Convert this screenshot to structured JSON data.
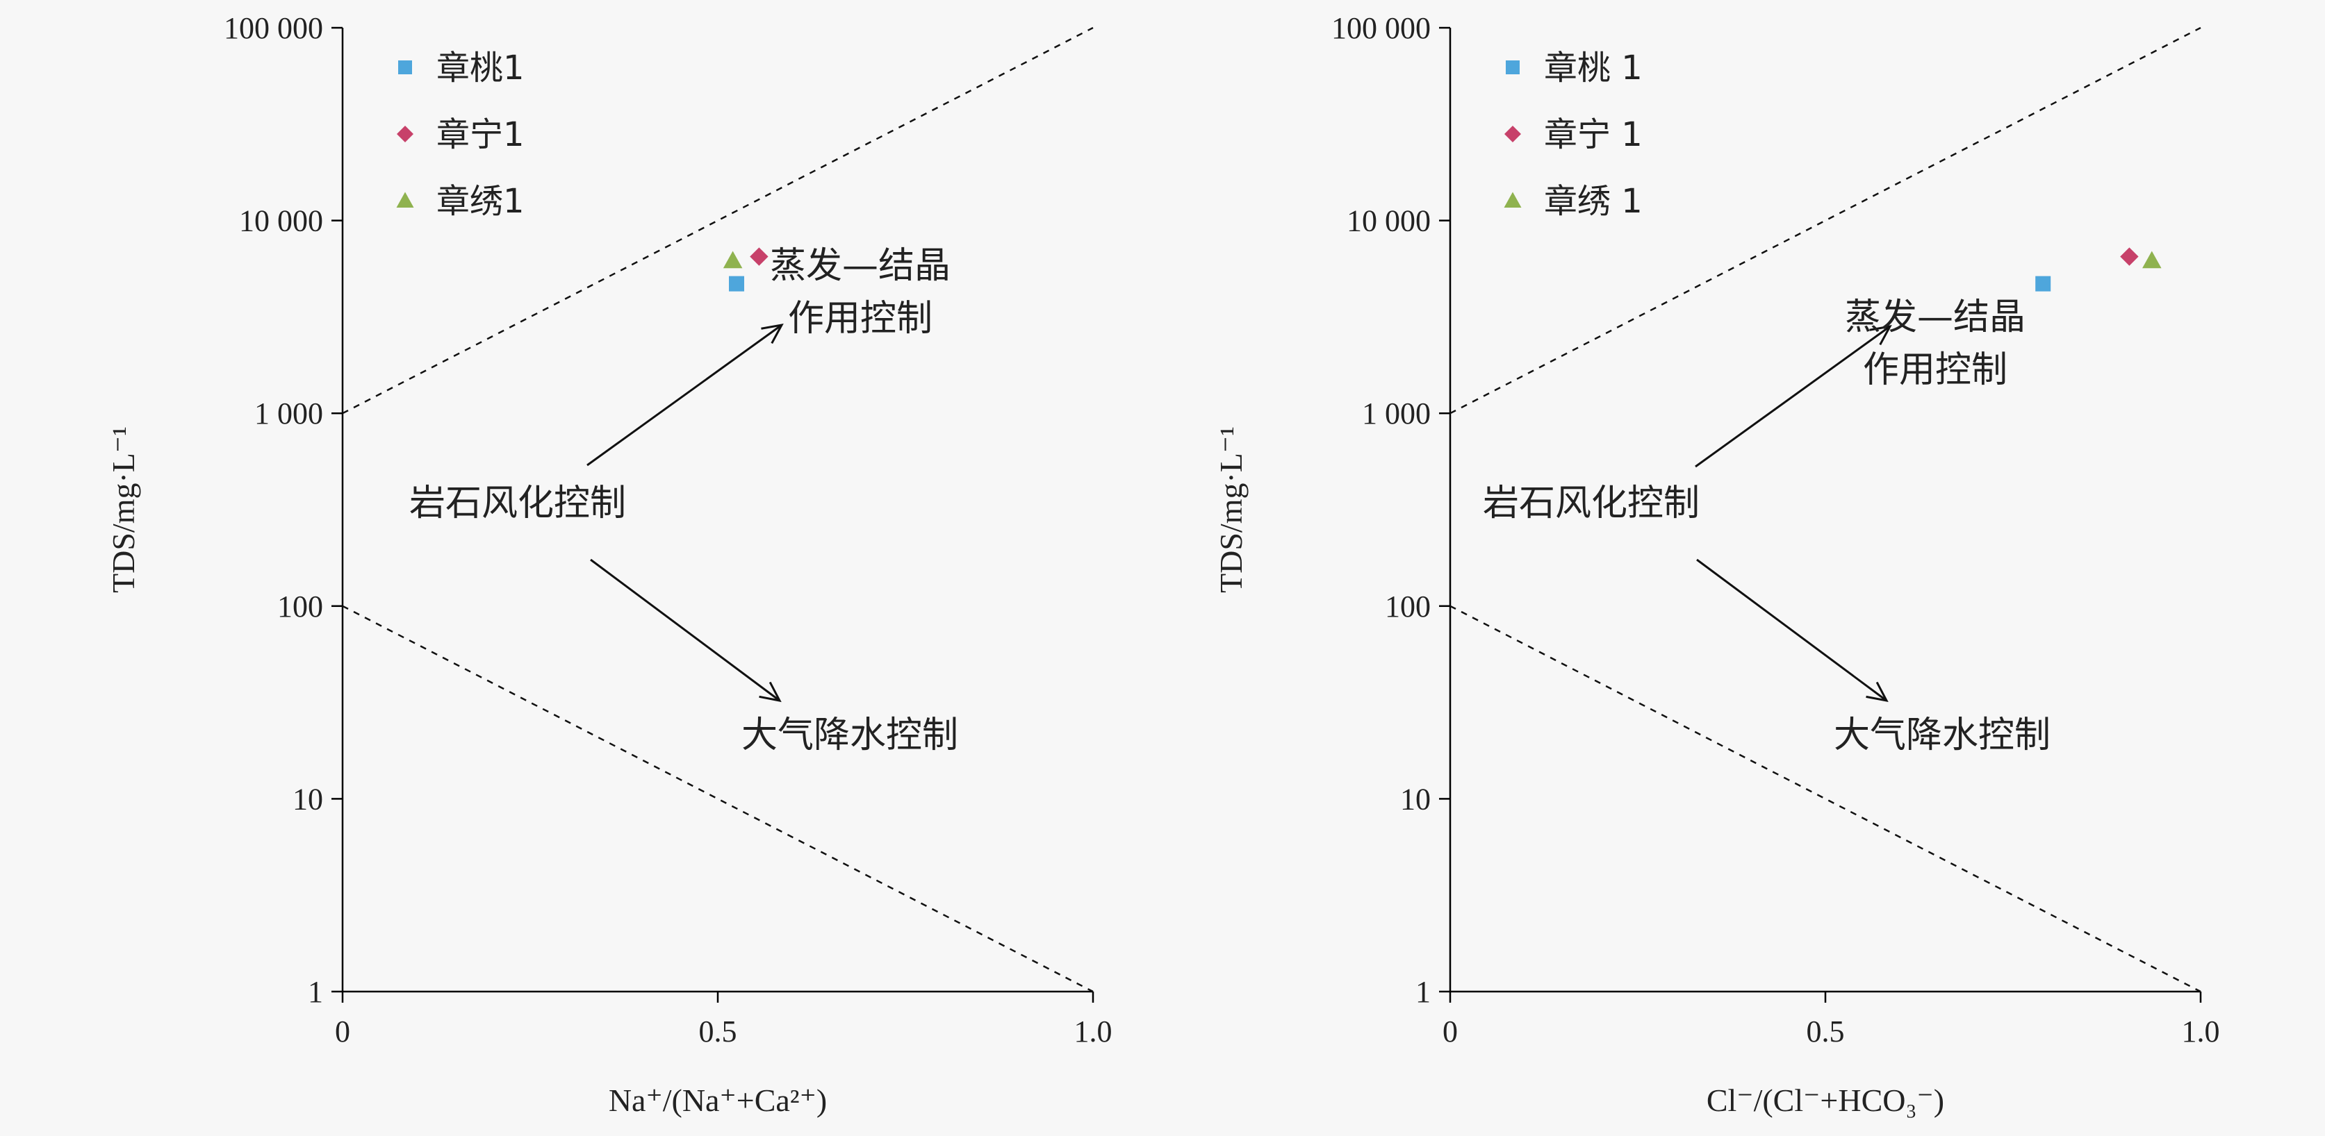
{
  "colors": {
    "square": "#4ea6dc",
    "diamond": "#c7416a",
    "triangle": "#8fb24f",
    "axis": "#000000"
  },
  "charts": [
    {
      "chart_data": {
        "type": "scatter",
        "y_scale": "log",
        "xlim": [
          0,
          1.0
        ],
        "ylim": [
          1,
          100000
        ],
        "xlabel": "Na⁺/(Na⁺+Ca²⁺)",
        "ylabel": "TDS/mg·L⁻¹",
        "x_ticks": [
          "0",
          "0.5",
          "1.0"
        ],
        "y_ticks": [
          "1",
          "10",
          "100",
          "1 000",
          "10 000",
          "100 000"
        ],
        "series": [
          {
            "name": "章桃1",
            "marker": "square",
            "x": 0.525,
            "y": 4700
          },
          {
            "name": "章宁1",
            "marker": "diamond",
            "x": 0.555,
            "y": 6500
          },
          {
            "name": "章绣1",
            "marker": "triangle",
            "x": 0.52,
            "y": 6200
          }
        ],
        "boundary_lines": [
          {
            "from": [
              0,
              1000
            ],
            "to": [
              1.0,
              100000
            ]
          },
          {
            "from": [
              0,
              100
            ],
            "to": [
              1.0,
              1
            ]
          }
        ],
        "annotations": [
          {
            "text": "岩石风化控制"
          },
          {
            "text": "蒸发—结晶"
          },
          {
            "text": "作用控制"
          },
          {
            "text": "大气降水控制"
          }
        ]
      }
    },
    {
      "chart_data": {
        "type": "scatter",
        "y_scale": "log",
        "xlim": [
          0,
          1.0
        ],
        "ylim": [
          1,
          100000
        ],
        "xlabel": "Cl⁻/(Cl⁻+HCO₃⁻)",
        "ylabel": "TDS/mg·L⁻¹",
        "x_ticks": [
          "0",
          "0.5",
          "1.0"
        ],
        "y_ticks": [
          "1",
          "10",
          "100",
          "1 000",
          "10 000",
          "100 000"
        ],
        "series": [
          {
            "name": "章桃 1",
            "marker": "square",
            "x": 0.79,
            "y": 4700
          },
          {
            "name": "章宁 1",
            "marker": "diamond",
            "x": 0.905,
            "y": 6500
          },
          {
            "name": "章绣 1",
            "marker": "triangle",
            "x": 0.935,
            "y": 6200
          }
        ],
        "boundary_lines": [
          {
            "from": [
              0,
              1000
            ],
            "to": [
              1.0,
              100000
            ]
          },
          {
            "from": [
              0,
              100
            ],
            "to": [
              1.0,
              1
            ]
          }
        ],
        "annotations": [
          {
            "text": "岩石风化控制"
          },
          {
            "text": "蒸发—结晶"
          },
          {
            "text": "作用控制"
          },
          {
            "text": "大气降水控制"
          }
        ]
      }
    }
  ]
}
